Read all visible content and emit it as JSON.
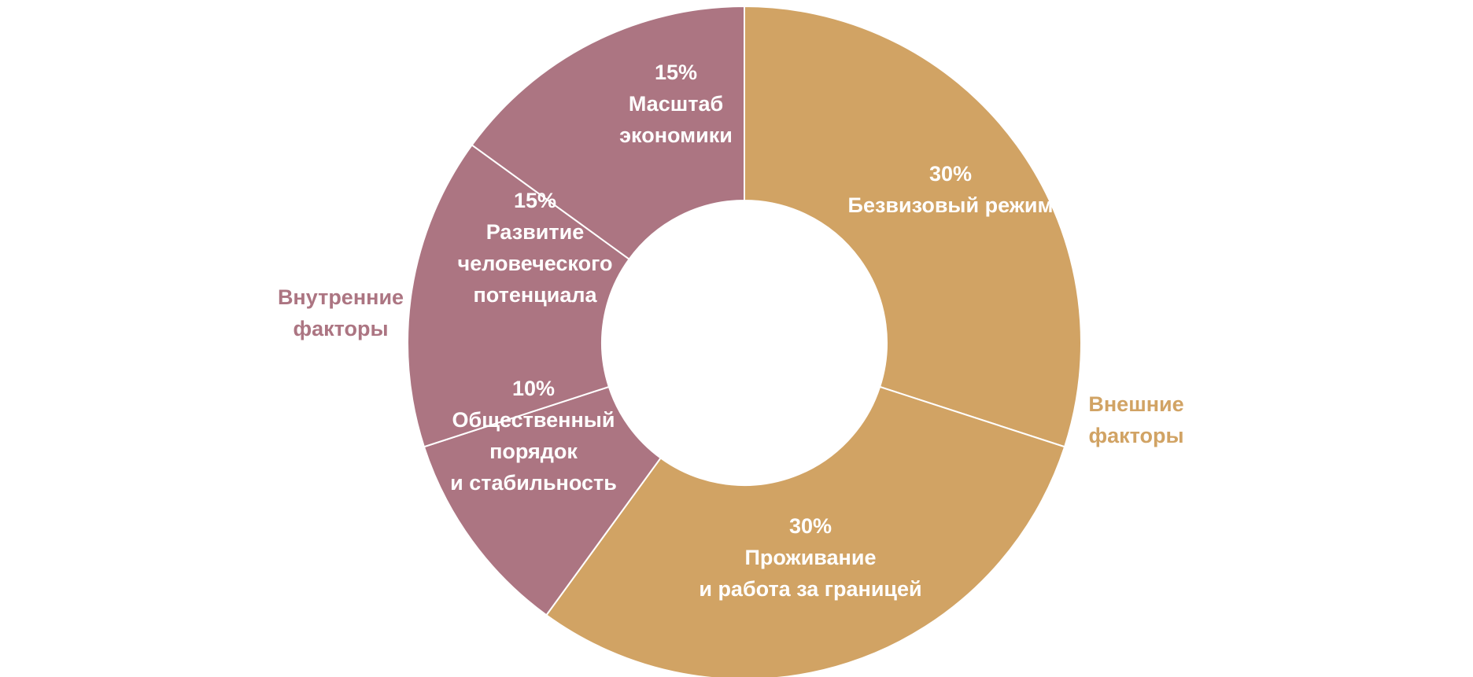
{
  "chart_data": {
    "type": "pie",
    "variant": "donut",
    "slices": [
      {
        "value": 30,
        "label": "30%",
        "name_lines": [
          "Безвизовый режим"
        ],
        "group": "external"
      },
      {
        "value": 30,
        "label": "30%",
        "name_lines": [
          "Проживание",
          "и работа за границей"
        ],
        "group": "external"
      },
      {
        "value": 10,
        "label": "10%",
        "name_lines": [
          "Общественный",
          "порядок",
          "и стабильность"
        ],
        "group": "internal"
      },
      {
        "value": 15,
        "label": "15%",
        "name_lines": [
          "Развитие",
          "человеческого",
          "потенциала"
        ],
        "group": "internal"
      },
      {
        "value": 15,
        "label": "15%",
        "name_lines": [
          "Масштаб",
          "экономики"
        ],
        "group": "internal"
      }
    ],
    "groups": [
      {
        "id": "internal",
        "name_lines": [
          "Внутренние",
          "факторы"
        ],
        "color": "#ac7582"
      },
      {
        "id": "external",
        "name_lines": [
          "Внешние",
          "факторы"
        ],
        "color": "#d1a364"
      }
    ],
    "start_angle_deg": 0,
    "direction": "clockwise",
    "separator_color": "#ffffff"
  }
}
